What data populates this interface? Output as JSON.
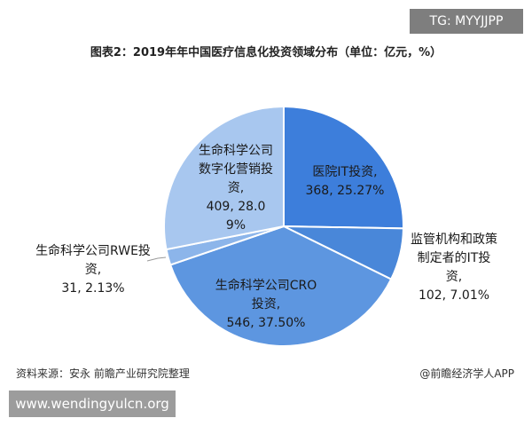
{
  "chart_data": {
    "type": "pie",
    "title": "图表2：2019年年中国医疗信息化投资领域分布（单位：亿元，%）",
    "categories": [
      "医院IT投资,",
      "监管机构和政策制定者的IT投资,",
      "生命科学公司CRO投资,",
      "生命科学公司RWE投资,",
      "生命科学公司数字化营销投资,"
    ],
    "values": [
      368,
      102,
      546,
      31,
      409
    ],
    "value_labels": [
      "368, 25.27%",
      "102, 7.01%",
      "546, 37.50%",
      "31, 2.13%",
      "409, 28.09%"
    ],
    "colors": [
      "#3d7edb",
      "#4987d9",
      "#5d96e0",
      "#8cb5ea",
      "#a8c7ef"
    ],
    "source": "资料来源：安永 前瞻产业研究院整理",
    "credit": "@前瞻经济学人APP"
  },
  "overlays": [
    "TG: MYYJJPP",
    "www.wendingyulcn.org"
  ]
}
